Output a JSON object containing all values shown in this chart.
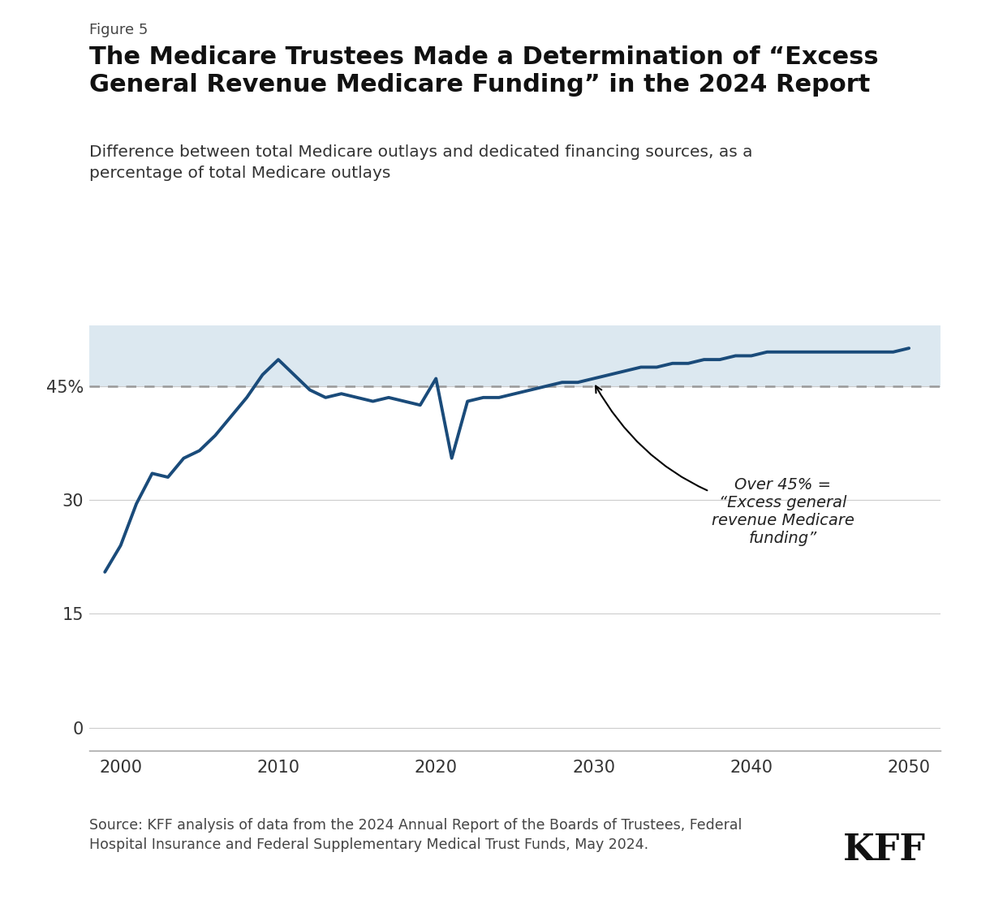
{
  "figure_label": "Figure 5",
  "title": "The Medicare Trustees Made a Determination of “Excess\nGeneral Revenue Medicare Funding” in the 2024 Report",
  "subtitle": "Difference between total Medicare outlays and dedicated financing sources, as a\npercentage of total Medicare outlays",
  "source": "Source: KFF analysis of data from the 2024 Annual Report of the Boards of Trustees, Federal\nHospital Insurance and Federal Supplementary Medical Trust Funds, May 2024.",
  "line_color": "#1a4b7a",
  "line_width": 2.8,
  "threshold": 45,
  "threshold_color": "#999999",
  "shading_color": "#dce8f0",
  "yticks": [
    0,
    15,
    30,
    45
  ],
  "ytick_labels": [
    "0",
    "15",
    "30",
    "45%"
  ],
  "xticks": [
    2000,
    2010,
    2020,
    2030,
    2040,
    2050
  ],
  "xlim": [
    1998,
    2052
  ],
  "ylim": [
    -3,
    53
  ],
  "annotation_text": "Over 45% =\n“Excess general\nrevenue Medicare\nfunding”",
  "years": [
    1999,
    2000,
    2001,
    2002,
    2003,
    2004,
    2005,
    2006,
    2007,
    2008,
    2009,
    2010,
    2011,
    2012,
    2013,
    2014,
    2015,
    2016,
    2017,
    2018,
    2019,
    2020,
    2021,
    2022,
    2023,
    2024,
    2025,
    2026,
    2027,
    2028,
    2029,
    2030,
    2031,
    2032,
    2033,
    2034,
    2035,
    2036,
    2037,
    2038,
    2039,
    2040,
    2041,
    2042,
    2043,
    2044,
    2045,
    2046,
    2047,
    2048,
    2049,
    2050
  ],
  "values": [
    20.5,
    24.0,
    29.5,
    33.5,
    33.0,
    35.5,
    36.5,
    38.5,
    41.0,
    43.5,
    46.5,
    48.5,
    46.5,
    44.5,
    43.5,
    44.0,
    43.5,
    43.0,
    43.5,
    43.0,
    42.5,
    46.0,
    35.5,
    43.0,
    43.5,
    43.5,
    44.0,
    44.5,
    45.0,
    45.5,
    45.5,
    46.0,
    46.5,
    47.0,
    47.5,
    47.5,
    48.0,
    48.0,
    48.5,
    48.5,
    49.0,
    49.0,
    49.5,
    49.5,
    49.5,
    49.5,
    49.5,
    49.5,
    49.5,
    49.5,
    49.5,
    50.0
  ]
}
